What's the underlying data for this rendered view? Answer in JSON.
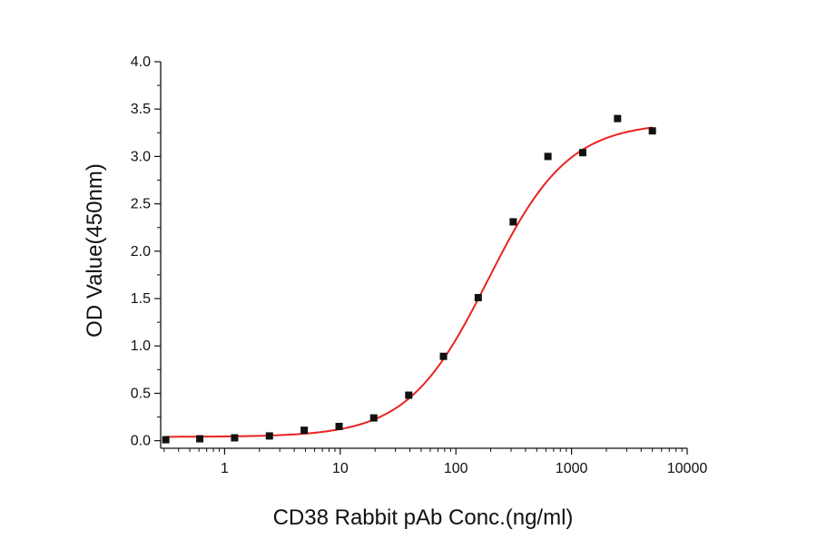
{
  "chart_data": {
    "type": "scatter",
    "title": "",
    "xlabel": "CD38 Rabbit pAb Conc.(ng/ml)",
    "ylabel": "OD Value(450nm)",
    "x_scale": "log",
    "xlim": [
      0.28,
      10000
    ],
    "ylim": [
      -0.08,
      4.0
    ],
    "x_ticks": [
      1,
      10,
      100,
      1000,
      10000
    ],
    "x_tick_labels": [
      "1",
      "10",
      "100",
      "1000",
      "10000"
    ],
    "y_ticks": [
      0.0,
      0.5,
      1.0,
      1.5,
      2.0,
      2.5,
      3.0,
      3.5,
      4.0
    ],
    "y_tick_labels": [
      "0.0",
      "0.5",
      "1.0",
      "1.5",
      "2.0",
      "2.5",
      "3.0",
      "3.5",
      "4.0"
    ],
    "grid": false,
    "legend": "none",
    "points": {
      "x": [
        0.31,
        0.61,
        1.22,
        2.44,
        4.88,
        9.77,
        19.5,
        39.1,
        78.1,
        156,
        313,
        625,
        1250,
        2500,
        5000
      ],
      "y": [
        0.01,
        0.02,
        0.03,
        0.05,
        0.11,
        0.15,
        0.24,
        0.48,
        0.89,
        1.51,
        2.31,
        3.0,
        3.04,
        3.4,
        3.27
      ],
      "color": "#111111",
      "marker": "square"
    },
    "fit_curve": {
      "model": "four-parameter logistic",
      "bottom": 0.04,
      "top": 3.36,
      "ec50": 190,
      "hill": 1.25,
      "color": "#e8241f"
    }
  }
}
